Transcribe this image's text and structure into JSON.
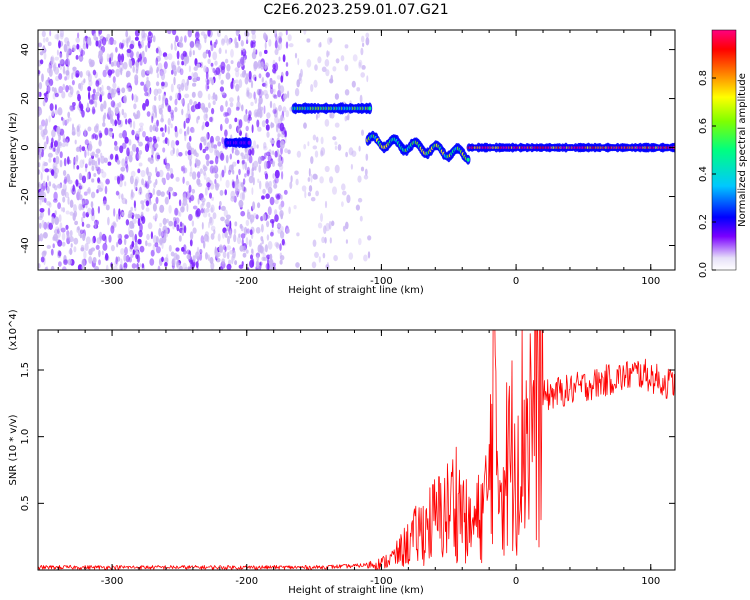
{
  "figure_title": "C2E6.2023.259.01.07.G21",
  "chart_data": [
    {
      "type": "heatmap",
      "title": "",
      "xlabel": "Height of straight line (km)",
      "ylabel": "Frequency (Hz)",
      "xlim": [
        -355,
        118
      ],
      "ylim": [
        -50,
        48
      ],
      "xticks": [
        -300,
        -200,
        -100,
        0,
        100
      ],
      "yticks": [
        -40,
        -20,
        0,
        20,
        40
      ],
      "colorbar": {
        "label": "Normalized spectral amplitude",
        "range": [
          0,
          1
        ],
        "ticks": [
          "0.0",
          "0.2",
          "0.4",
          "0.6",
          "0.8"
        ],
        "colormap": [
          "#e6e0f8",
          "#7a00ff",
          "#0000ff",
          "#00c8ff",
          "#00ff80",
          "#80ff00",
          "#ffff00",
          "#ff8000",
          "#ff0000",
          "#ff0080"
        ]
      },
      "features": [
        {
          "x_range": [
            -355,
            -170
          ],
          "y_range": [
            -50,
            48
          ],
          "amplitude": 0.08,
          "kind": "broadband noise"
        },
        {
          "x_range": [
            -170,
            -108
          ],
          "y_range": [
            -50,
            48
          ],
          "amplitude": 0.03,
          "kind": "sparse noise"
        },
        {
          "x_range": [
            -165,
            -108
          ],
          "y_center": 16,
          "amplitude": 0.5,
          "kind": "tone"
        },
        {
          "x_range": [
            -215,
            -198
          ],
          "y_center": 2,
          "amplitude": 0.2,
          "kind": "tone"
        },
        {
          "x_range": [
            -110,
            -35
          ],
          "y_center": 0,
          "amplitude": 0.55,
          "kind": "drifting carrier"
        },
        {
          "x_range": [
            -35,
            118
          ],
          "y_center": 0,
          "amplitude": 0.9,
          "kind": "carrier"
        }
      ]
    },
    {
      "type": "line",
      "title": "",
      "xlabel": "Height of straight line (km)",
      "ylabel": "SNR (10 * v/v)",
      "yunit": "(x10^4)",
      "xlim": [
        -355,
        118
      ],
      "ylim": [
        0,
        1.8
      ],
      "xticks": [
        -300,
        -200,
        -100,
        0,
        100
      ],
      "yticks": [
        0.5,
        1.0,
        1.5
      ],
      "ytick_labels": [
        "0.5",
        "1.0",
        "1.5"
      ],
      "color": "#ff0000",
      "series": [
        {
          "x": [
            -355,
            -300,
            -250,
            -200,
            -150,
            -120,
            -100,
            -90,
            -80,
            -70,
            -60,
            -50,
            -45,
            -40,
            -35,
            -30,
            -25,
            -20,
            -17,
            -15,
            -10,
            -5,
            0,
            10,
            20,
            30,
            40,
            50,
            60,
            70,
            80,
            90,
            100,
            110,
            118
          ],
          "values": [
            0.02,
            0.02,
            0.02,
            0.02,
            0.02,
            0.03,
            0.05,
            0.1,
            0.2,
            0.3,
            0.38,
            0.45,
            0.55,
            0.45,
            0.3,
            0.35,
            0.45,
            0.6,
            1.7,
            0.8,
            0.7,
            0.85,
            0.95,
            1.15,
            1.3,
            1.33,
            1.35,
            1.38,
            1.4,
            1.43,
            1.45,
            1.48,
            1.45,
            1.4,
            1.4
          ]
        }
      ]
    }
  ]
}
